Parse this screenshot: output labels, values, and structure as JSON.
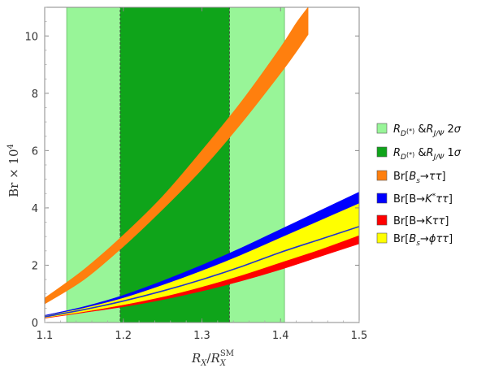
{
  "chart_data": {
    "type": "area",
    "xlabel": "R_X/R_X^SM",
    "ylabel": "Br × 10^4",
    "xlim": [
      1.1,
      1.5
    ],
    "ylim": [
      0,
      11
    ],
    "x_ticks": [
      1.1,
      1.2,
      1.3,
      1.4,
      1.5
    ],
    "y_ticks": [
      0,
      2,
      4,
      6,
      8,
      10
    ],
    "x_tick_labels": [
      "1.1",
      "1.2",
      "1.3",
      "1.4",
      "1.5"
    ],
    "y_tick_labels": [
      "0",
      "2",
      "4",
      "6",
      "8",
      "10"
    ],
    "legend_position": "right",
    "regions": [
      {
        "name": "R_D(*)&R_J/Ψ 2σ",
        "x_range": [
          1.128,
          1.405
        ],
        "color": "#98f598"
      },
      {
        "name": "R_D(*)&R_J/Ψ 1σ",
        "x_range": [
          1.196,
          1.335
        ],
        "color": "#0fa41a"
      }
    ],
    "series": [
      {
        "name": "Br[Bs→ττ]",
        "color": "#ff7f0e",
        "x": [
          1.1,
          1.15,
          1.2,
          1.25,
          1.3,
          1.35,
          1.4,
          1.42,
          1.435
        ],
        "lower": [
          0.65,
          1.5,
          2.65,
          3.95,
          5.35,
          6.95,
          8.7,
          9.45,
          10.05
        ],
        "upper": [
          0.85,
          1.85,
          3.05,
          4.4,
          6.0,
          7.7,
          9.6,
          10.45,
          11.0
        ]
      },
      {
        "name": "Br[B→K*ττ]",
        "color": "#0000ff",
        "x": [
          1.1,
          1.15,
          1.2,
          1.25,
          1.3,
          1.35,
          1.4,
          1.45,
          1.5
        ],
        "lower": [
          0.2,
          0.45,
          0.8,
          1.2,
          1.6,
          2.05,
          2.55,
          3.05,
          3.6
        ],
        "upper": [
          0.25,
          0.55,
          0.95,
          1.45,
          2.0,
          2.6,
          3.25,
          3.9,
          4.55
        ]
      },
      {
        "name": "Br[B→Kττ]",
        "color": "#ff0000",
        "x": [
          1.1,
          1.15,
          1.2,
          1.25,
          1.3,
          1.35,
          1.4,
          1.45,
          1.5
        ],
        "lower": [
          0.15,
          0.35,
          0.55,
          0.8,
          1.1,
          1.45,
          1.85,
          2.3,
          2.75
        ],
        "upper": [
          0.18,
          0.4,
          0.65,
          0.95,
          1.3,
          1.7,
          2.15,
          2.6,
          3.1
        ]
      },
      {
        "name": "Br[Bs→ϕττ]",
        "color": "#ffff00",
        "x": [
          1.1,
          1.15,
          1.2,
          1.25,
          1.3,
          1.35,
          1.4,
          1.45,
          1.5
        ],
        "lower": [
          0.17,
          0.38,
          0.62,
          0.9,
          1.25,
          1.65,
          2.1,
          2.55,
          3.05
        ],
        "upper": [
          0.22,
          0.5,
          0.85,
          1.3,
          1.8,
          2.35,
          2.95,
          3.55,
          4.15
        ]
      }
    ],
    "lines": [
      {
        "color": "#2233cc",
        "x": [
          1.1,
          1.15,
          1.2,
          1.25,
          1.3,
          1.35,
          1.4,
          1.45,
          1.5
        ],
        "y": [
          0.2,
          0.45,
          0.75,
          1.1,
          1.5,
          1.95,
          2.45,
          2.9,
          3.35
        ]
      }
    ]
  }
}
